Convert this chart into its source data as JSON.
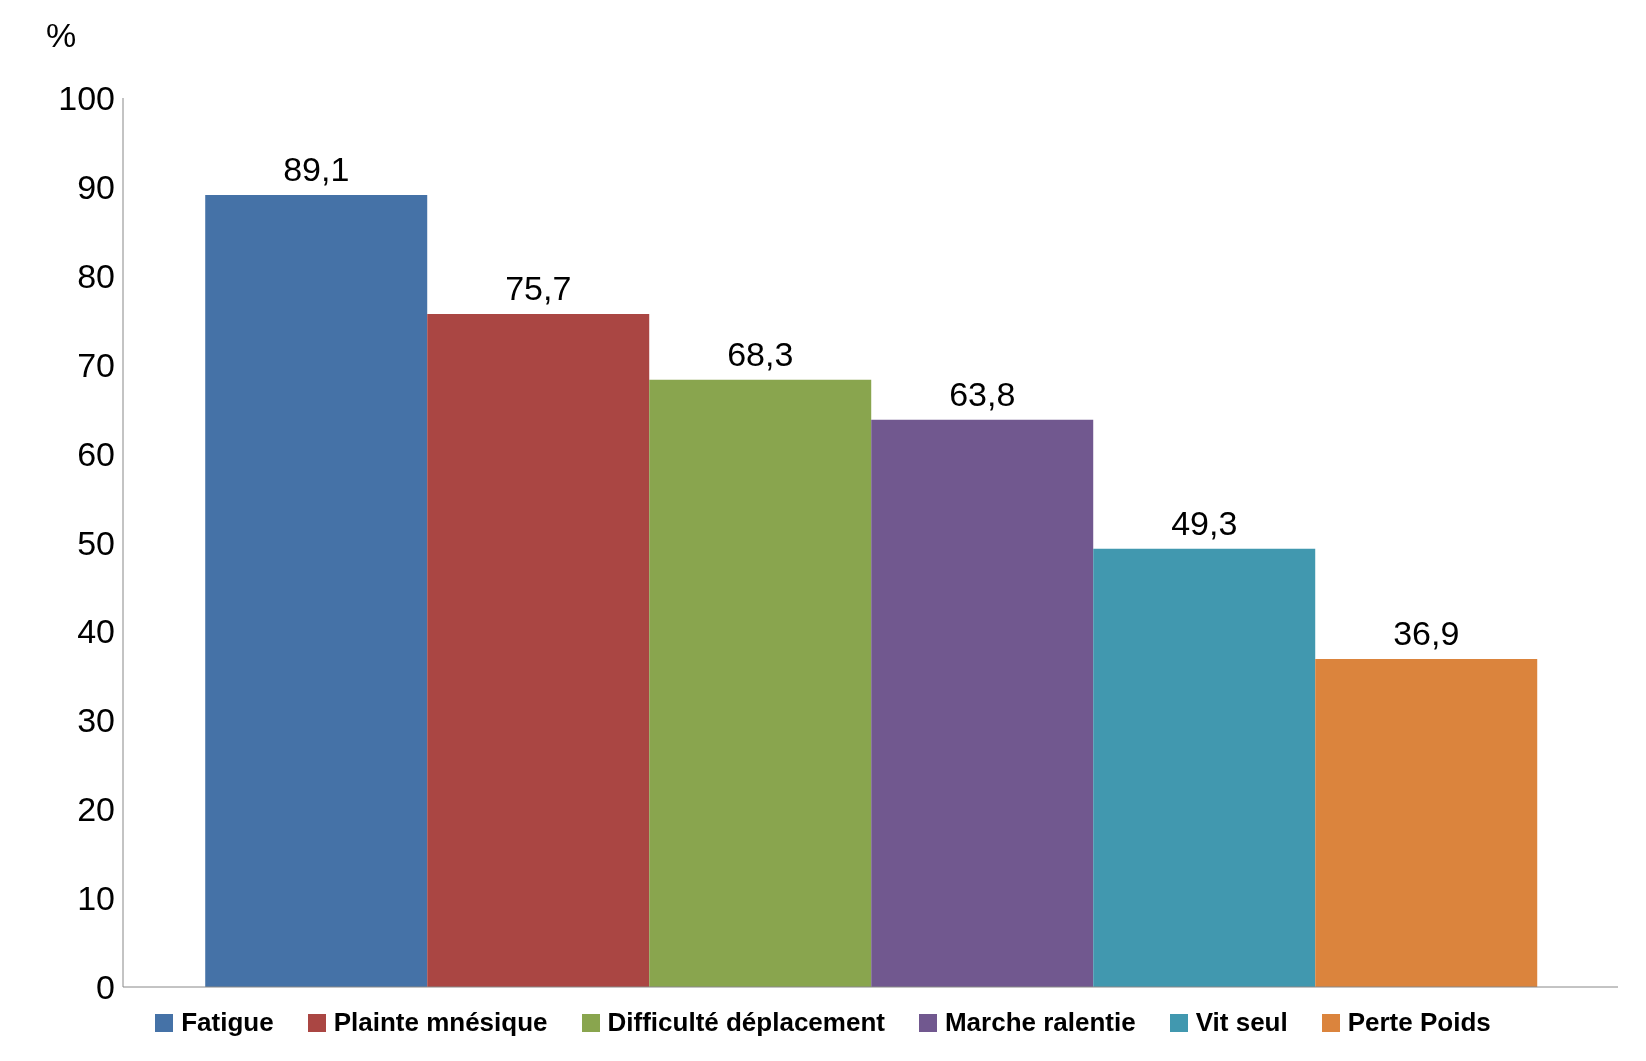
{
  "chart_data": {
    "type": "bar",
    "ylabel": "%",
    "categories": [
      null
    ],
    "series": [
      {
        "name": "Fatigue",
        "color": "#4572a7",
        "values": [
          89.1
        ],
        "value_labels": [
          "89,1"
        ]
      },
      {
        "name": "Plainte mnésique",
        "color": "#aa4643",
        "values": [
          75.7
        ],
        "value_labels": [
          "75,7"
        ]
      },
      {
        "name": "Difficulté déplacement",
        "color": "#89a54e",
        "values": [
          68.3
        ],
        "value_labels": [
          "68,3"
        ]
      },
      {
        "name": "Marche ralentie",
        "color": "#71588f",
        "values": [
          63.8
        ],
        "value_labels": [
          "63,8"
        ]
      },
      {
        "name": "Vit seul",
        "color": "#4198af",
        "values": [
          49.3
        ],
        "value_labels": [
          "49,3"
        ]
      },
      {
        "name": "Perte Poids",
        "color": "#db843d",
        "values": [
          36.9
        ],
        "value_labels": [
          "36,9"
        ]
      }
    ],
    "ylim": [
      0,
      100
    ],
    "yticks": [
      0,
      10,
      20,
      30,
      40,
      50,
      60,
      70,
      80,
      90,
      100
    ],
    "legend": "bottom",
    "tick_labels": "y"
  }
}
